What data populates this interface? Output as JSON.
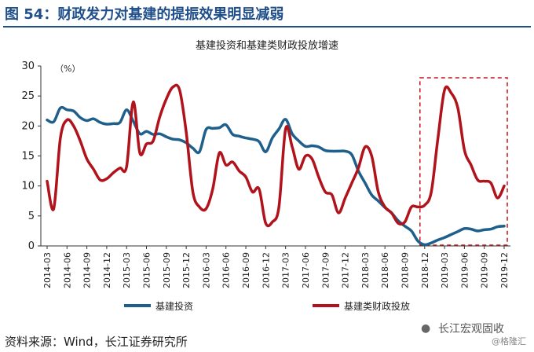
{
  "figure": {
    "title": "图 54：财政发力对基建的提振效果明显减弱",
    "source": "资料来源：Wind，长江证券研究所",
    "watermark": {
      "main": "长江宏观固收",
      "sub": "@格隆汇",
      "logo_icon": "wechat-icon"
    }
  },
  "chart_data": {
    "type": "line",
    "title": "基建投资和基建类财政投放增速",
    "unit_label": "（%）",
    "xlabel": "",
    "ylabel": "",
    "ylim": [
      0,
      30
    ],
    "yticks": [
      0,
      5,
      10,
      15,
      20,
      25,
      30
    ],
    "grid": false,
    "legend_position": "bottom",
    "x_start": "2014-03",
    "x_end": "2019-12",
    "xtick_labels": [
      "2014-03",
      "2014-06",
      "2014-09",
      "2014-12",
      "2015-03",
      "2015-06",
      "2015-09",
      "2015-12",
      "2016-03",
      "2016-06",
      "2016-09",
      "2016-12",
      "2017-03",
      "2017-06",
      "2017-09",
      "2017-12",
      "2018-03",
      "2018-06",
      "2018-09",
      "2018-12",
      "2019-03",
      "2019-06",
      "2019-09",
      "2019-12"
    ],
    "highlight": {
      "x_start": "2018-12",
      "x_end": "2019-12",
      "style": "dashed",
      "color": "#c0171c"
    },
    "series": [
      {
        "name": "基建投资",
        "color": "#1f5f8b",
        "points": [
          [
            "2014-03",
            21.0
          ],
          [
            "2014-04",
            20.7
          ],
          [
            "2014-05",
            23.0
          ],
          [
            "2014-06",
            22.7
          ],
          [
            "2014-07",
            22.5
          ],
          [
            "2014-08",
            21.4
          ],
          [
            "2014-09",
            20.9
          ],
          [
            "2014-10",
            21.2
          ],
          [
            "2014-11",
            20.6
          ],
          [
            "2014-12",
            20.3
          ],
          [
            "2015-01",
            20.4
          ],
          [
            "2015-02",
            20.6
          ],
          [
            "2015-03",
            22.7
          ],
          [
            "2015-04",
            20.8
          ],
          [
            "2015-05",
            18.7
          ],
          [
            "2015-06",
            19.1
          ],
          [
            "2015-07",
            18.6
          ],
          [
            "2015-08",
            18.7
          ],
          [
            "2015-09",
            18.2
          ],
          [
            "2015-10",
            17.8
          ],
          [
            "2015-11",
            17.7
          ],
          [
            "2015-12",
            17.2
          ],
          [
            "2016-01",
            16.3
          ],
          [
            "2016-02",
            15.7
          ],
          [
            "2016-03",
            19.4
          ],
          [
            "2016-04",
            19.6
          ],
          [
            "2016-05",
            19.7
          ],
          [
            "2016-06",
            20.2
          ],
          [
            "2016-07",
            18.6
          ],
          [
            "2016-08",
            18.3
          ],
          [
            "2016-09",
            18.0
          ],
          [
            "2016-10",
            17.8
          ],
          [
            "2016-11",
            17.4
          ],
          [
            "2016-12",
            15.7
          ],
          [
            "2017-01",
            18.0
          ],
          [
            "2017-02",
            19.5
          ],
          [
            "2017-03",
            21.1
          ],
          [
            "2017-04",
            18.7
          ],
          [
            "2017-05",
            17.5
          ],
          [
            "2017-06",
            16.6
          ],
          [
            "2017-07",
            16.7
          ],
          [
            "2017-08",
            16.5
          ],
          [
            "2017-09",
            15.9
          ],
          [
            "2017-10",
            15.8
          ],
          [
            "2017-11",
            15.8
          ],
          [
            "2017-12",
            15.8
          ],
          [
            "2018-01",
            15.2
          ],
          [
            "2018-02",
            12.5
          ],
          [
            "2018-03",
            10.5
          ],
          [
            "2018-04",
            8.5
          ],
          [
            "2018-05",
            7.5
          ],
          [
            "2018-06",
            6.4
          ],
          [
            "2018-07",
            5.5
          ],
          [
            "2018-08",
            4.2
          ],
          [
            "2018-09",
            3.3
          ],
          [
            "2018-10",
            2.5
          ],
          [
            "2018-11",
            0.8
          ],
          [
            "2018-12",
            0.2
          ],
          [
            "2019-01",
            0.5
          ],
          [
            "2019-02",
            1.0
          ],
          [
            "2019-03",
            1.4
          ],
          [
            "2019-04",
            1.9
          ],
          [
            "2019-05",
            2.4
          ],
          [
            "2019-06",
            2.9
          ],
          [
            "2019-07",
            2.8
          ],
          [
            "2019-08",
            2.5
          ],
          [
            "2019-09",
            2.7
          ],
          [
            "2019-10",
            2.8
          ],
          [
            "2019-11",
            3.2
          ],
          [
            "2019-12",
            3.3
          ]
        ]
      },
      {
        "name": "基建类财政投放",
        "color": "#b0131b",
        "points": [
          [
            "2014-03",
            10.8
          ],
          [
            "2014-04",
            6.2
          ],
          [
            "2014-05",
            18.0
          ],
          [
            "2014-06",
            21.0
          ],
          [
            "2014-07",
            20.0
          ],
          [
            "2014-08",
            17.5
          ],
          [
            "2014-09",
            14.5
          ],
          [
            "2014-10",
            12.8
          ],
          [
            "2014-11",
            11.0
          ],
          [
            "2014-12",
            11.2
          ],
          [
            "2015-01",
            12.2
          ],
          [
            "2015-02",
            13.0
          ],
          [
            "2015-03",
            13.2
          ],
          [
            "2015-04",
            24.0
          ],
          [
            "2015-05",
            15.5
          ],
          [
            "2015-06",
            17.0
          ],
          [
            "2015-07",
            17.5
          ],
          [
            "2015-08",
            21.5
          ],
          [
            "2015-09",
            24.5
          ],
          [
            "2015-10",
            26.5
          ],
          [
            "2015-11",
            26.0
          ],
          [
            "2015-12",
            19.0
          ],
          [
            "2016-01",
            9.0
          ],
          [
            "2016-02",
            6.5
          ],
          [
            "2016-03",
            6.2
          ],
          [
            "2016-04",
            9.5
          ],
          [
            "2016-05",
            15.5
          ],
          [
            "2016-06",
            13.5
          ],
          [
            "2016-07",
            14.0
          ],
          [
            "2016-08",
            12.5
          ],
          [
            "2016-09",
            11.5
          ],
          [
            "2016-10",
            9.0
          ],
          [
            "2016-11",
            9.5
          ],
          [
            "2016-12",
            3.8
          ],
          [
            "2017-01",
            4.0
          ],
          [
            "2017-02",
            6.5
          ],
          [
            "2017-03",
            19.5
          ],
          [
            "2017-04",
            16.5
          ],
          [
            "2017-05",
            12.8
          ],
          [
            "2017-06",
            15.0
          ],
          [
            "2017-07",
            14.5
          ],
          [
            "2017-08",
            11.5
          ],
          [
            "2017-09",
            9.0
          ],
          [
            "2017-10",
            8.5
          ],
          [
            "2017-11",
            5.5
          ],
          [
            "2017-12",
            8.0
          ],
          [
            "2018-01",
            10.5
          ],
          [
            "2018-02",
            13.0
          ],
          [
            "2018-03",
            16.5
          ],
          [
            "2018-04",
            15.0
          ],
          [
            "2018-05",
            9.0
          ],
          [
            "2018-06",
            6.5
          ],
          [
            "2018-07",
            5.5
          ],
          [
            "2018-08",
            3.8
          ],
          [
            "2018-09",
            4.0
          ],
          [
            "2018-10",
            6.5
          ],
          [
            "2018-11",
            6.5
          ],
          [
            "2018-12",
            6.8
          ],
          [
            "2019-01",
            9.0
          ],
          [
            "2019-02",
            18.0
          ],
          [
            "2019-03",
            26.0
          ],
          [
            "2019-04",
            25.5
          ],
          [
            "2019-05",
            23.0
          ],
          [
            "2019-06",
            16.0
          ],
          [
            "2019-07",
            13.5
          ],
          [
            "2019-08",
            11.0
          ],
          [
            "2019-09",
            10.8
          ],
          [
            "2019-10",
            10.5
          ],
          [
            "2019-11",
            8.0
          ],
          [
            "2019-12",
            10.0
          ]
        ]
      }
    ]
  }
}
